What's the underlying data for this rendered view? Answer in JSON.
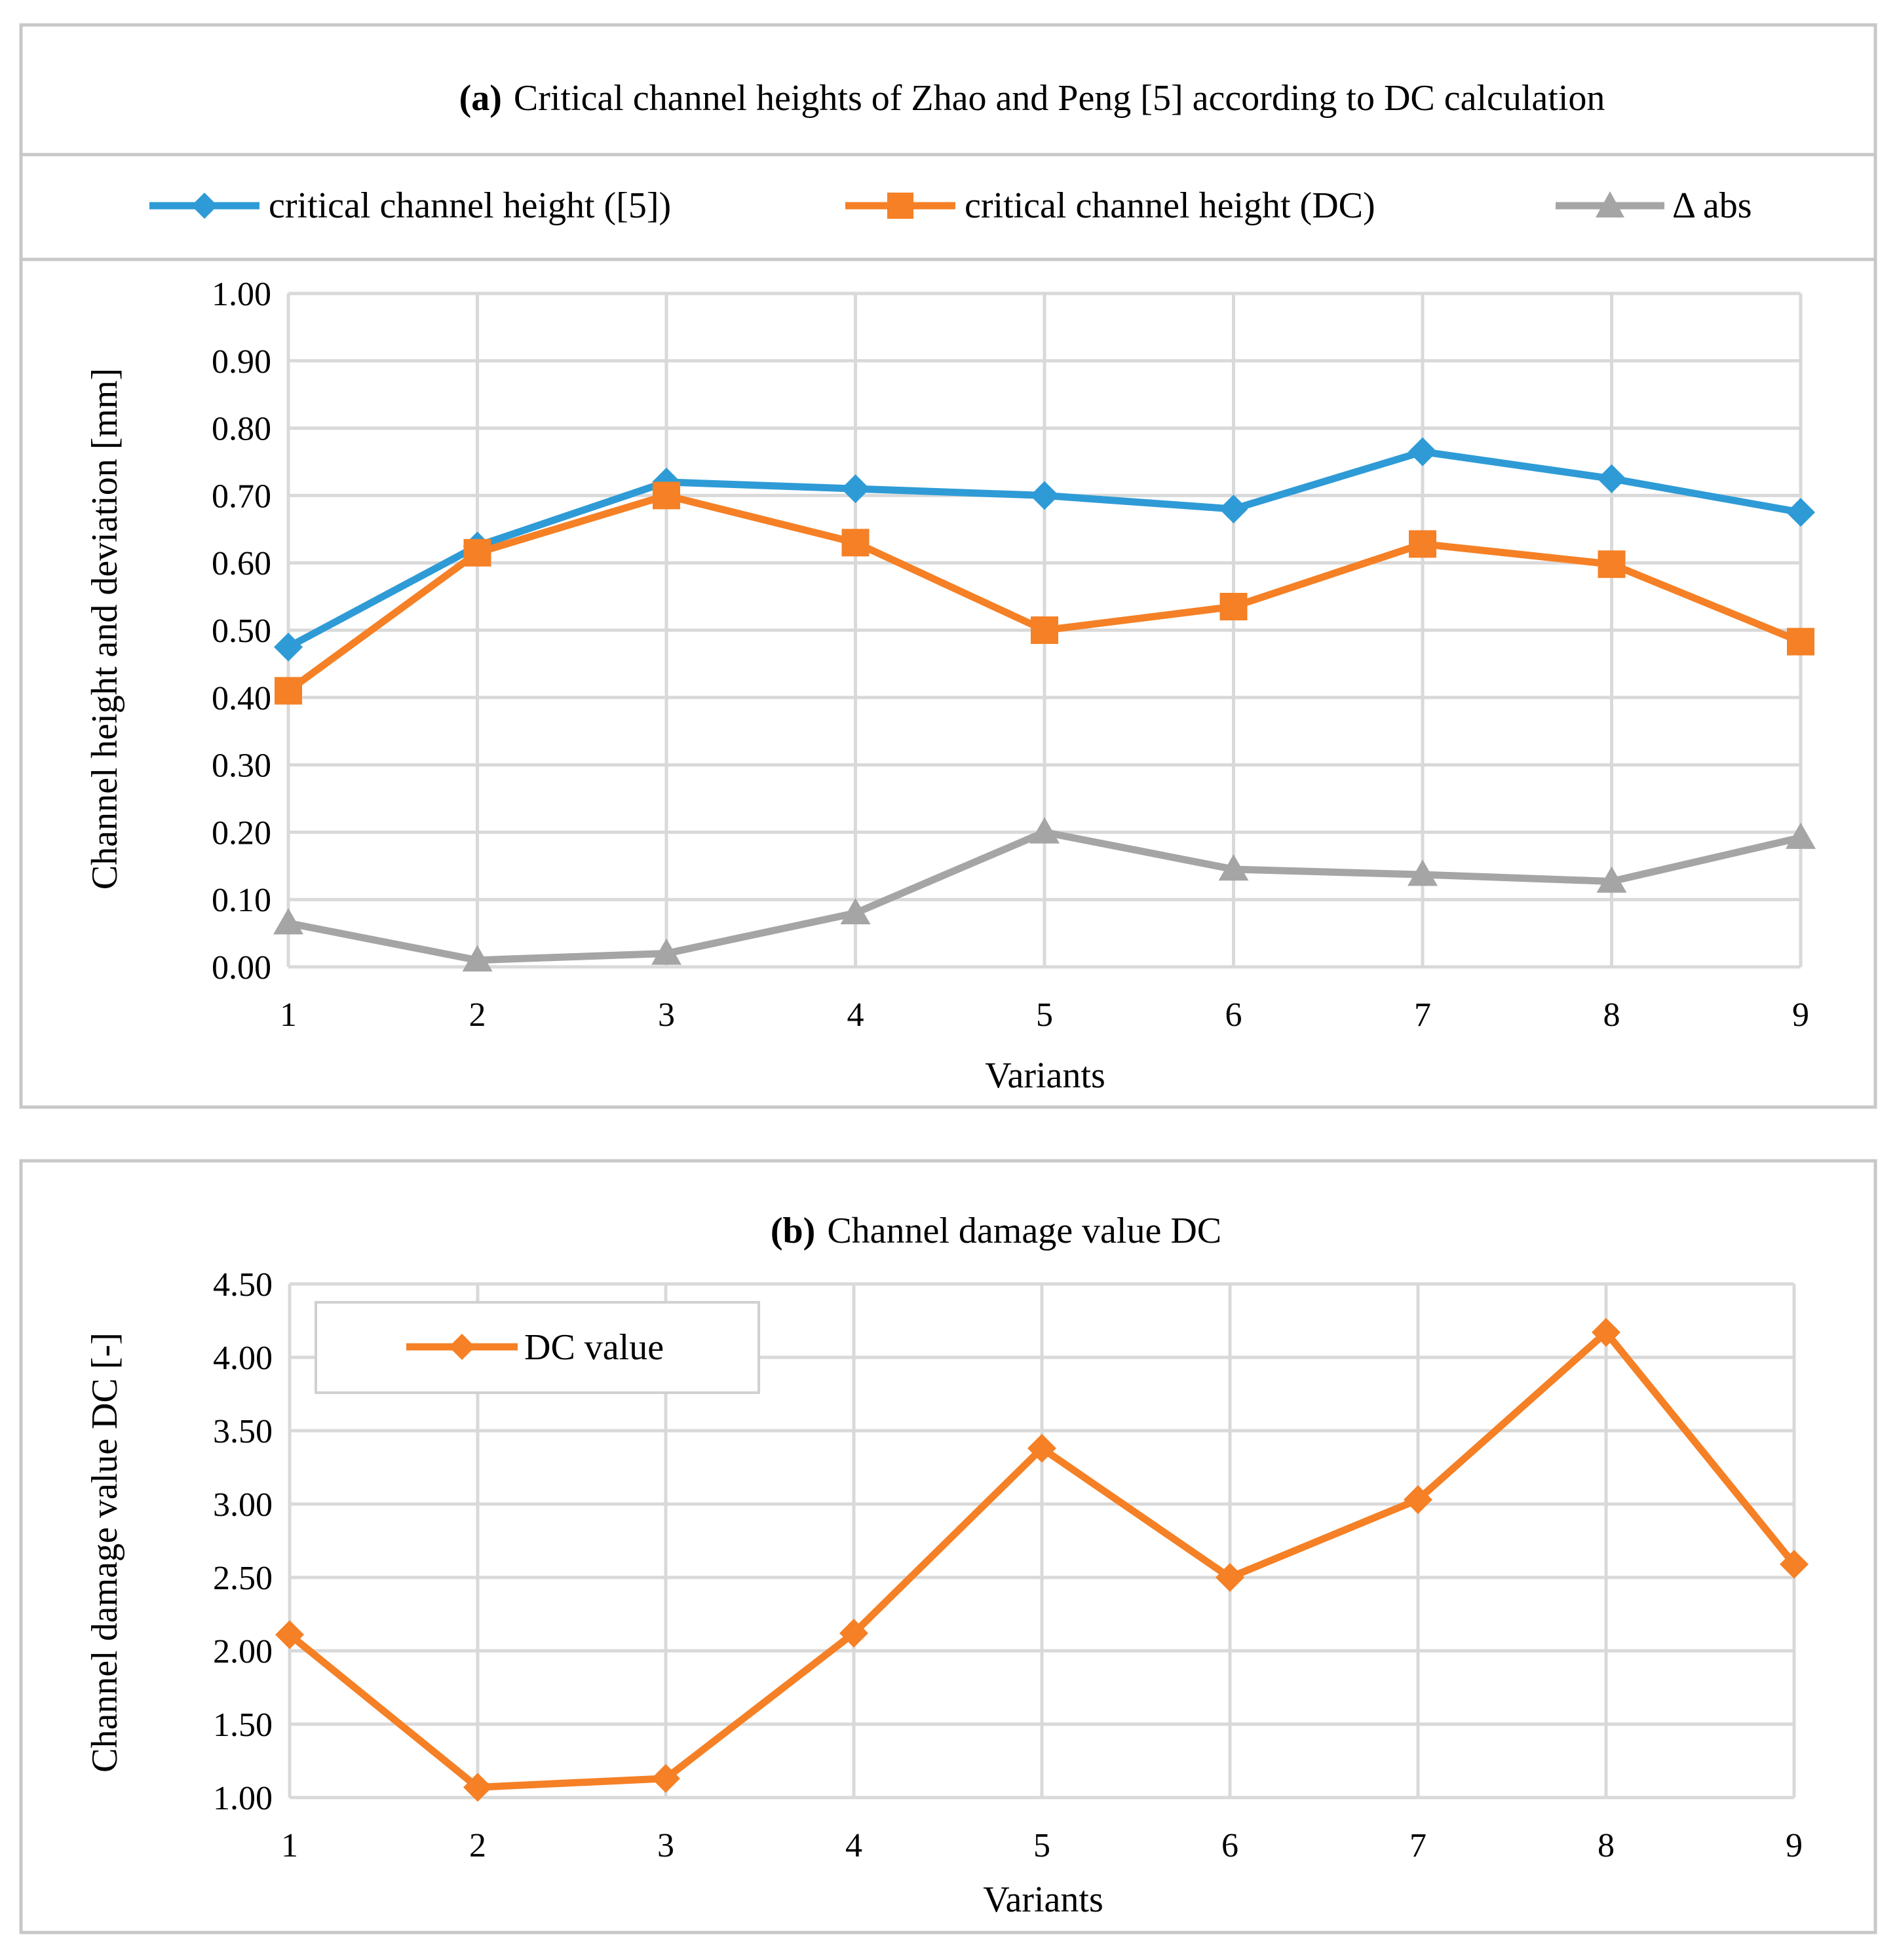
{
  "figure_title": "Critical channel heights and channel damage value DC",
  "chart_data": [
    {
      "type": "line",
      "panel_label": "(a)",
      "title": "Critical channel heights of Zhao and Peng [5] according to DC calculation",
      "xlabel": "Variants",
      "ylabel": "Channel height and deviation [mm]",
      "categories": [
        "1",
        "2",
        "3",
        "4",
        "5",
        "6",
        "7",
        "8",
        "9"
      ],
      "ylim": [
        0,
        1
      ],
      "yticks": [
        "0.00",
        "0.10",
        "0.20",
        "0.30",
        "0.40",
        "0.50",
        "0.60",
        "0.70",
        "0.80",
        "0.90",
        "1.00"
      ],
      "legend_position": "top",
      "grid": true,
      "series": [
        {
          "name": "critical channel height ([5])",
          "color": "#2E9BD6",
          "marker": "diamond",
          "values": [
            0.475,
            0.625,
            0.72,
            0.71,
            0.7,
            0.68,
            0.765,
            0.725,
            0.675
          ]
        },
        {
          "name": "critical channel height (DC)",
          "color": "#F58025",
          "marker": "square",
          "values": [
            0.41,
            0.615,
            0.7,
            0.63,
            0.5,
            0.535,
            0.628,
            0.598,
            0.483
          ]
        },
        {
          "name": "Δ abs",
          "color": "#A5A5A5",
          "marker": "triangle",
          "values": [
            0.065,
            0.01,
            0.02,
            0.08,
            0.2,
            0.145,
            0.137,
            0.127,
            0.192
          ]
        }
      ]
    },
    {
      "type": "line",
      "panel_label": "(b)",
      "title": "Channel damage value DC",
      "xlabel": "Variants",
      "ylabel": "Channel damage value DC [-]",
      "categories": [
        "1",
        "2",
        "3",
        "4",
        "5",
        "6",
        "7",
        "8",
        "9"
      ],
      "ylim": [
        1,
        4.5
      ],
      "yticks": [
        "1.00",
        "1.50",
        "2.00",
        "2.50",
        "3.00",
        "3.50",
        "4.00",
        "4.50"
      ],
      "legend_position": "top-left",
      "grid": true,
      "series": [
        {
          "name": "DC value",
          "color": "#F58025",
          "marker": "diamond",
          "values": [
            2.11,
            1.07,
            1.13,
            2.12,
            3.38,
            2.5,
            3.03,
            4.17,
            2.59
          ]
        }
      ]
    }
  ]
}
